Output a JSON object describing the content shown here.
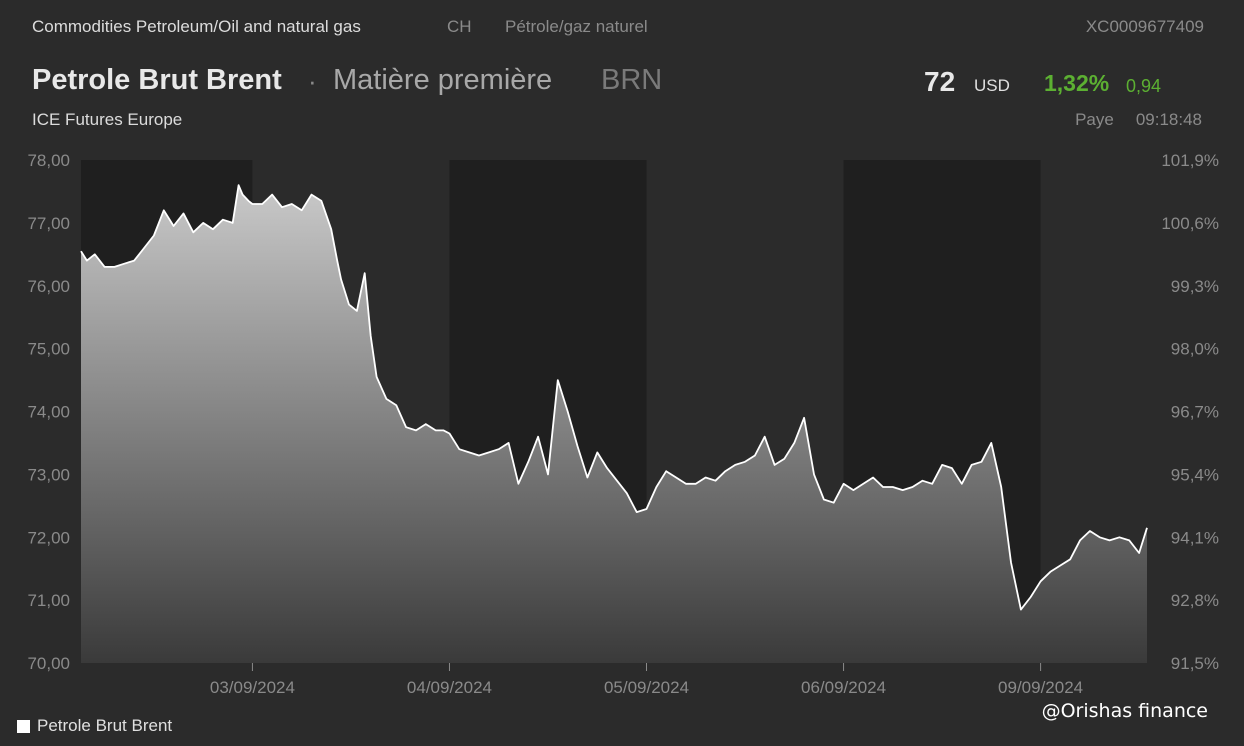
{
  "header": {
    "category": "Commodities Petroleum/Oil and natural gas",
    "country": "CH",
    "category_fr": "Pétrole/gaz naturel",
    "isin": "XC0009677409",
    "name": "Petrole Brut Brent",
    "separator": "·",
    "type": "Matière première",
    "ticker": "BRN",
    "exchange": "ICE Futures Europe"
  },
  "quote": {
    "price": "72",
    "currency": "USD",
    "change_pct": "1,32%",
    "change_abs": "0,94",
    "status": "Paye",
    "time": "09:18:48"
  },
  "legend": {
    "label": "Petrole Brut Brent"
  },
  "watermark": "@Orishas finance",
  "colors": {
    "background": "#2b2b2b",
    "night_band": "#1f1f1f",
    "line": "#ffffff",
    "positive": "#5cb032"
  },
  "chart_data": {
    "type": "area",
    "ylim": [
      70,
      78
    ],
    "y_ticks_left": [
      "78,00",
      "77,00",
      "76,00",
      "75,00",
      "74,00",
      "73,00",
      "72,00",
      "71,00",
      "70,00"
    ],
    "y_ticks_right": [
      "101,9%",
      "100,6%",
      "99,3%",
      "98,0%",
      "96,7%",
      "95,4%",
      "94,1%",
      "92,8%",
      "91,5%"
    ],
    "x_tick_labels": [
      "03/09/2024",
      "04/09/2024",
      "05/09/2024",
      "06/09/2024",
      "09/09/2024"
    ],
    "x_tick_positions": [
      0.87,
      1.87,
      2.87,
      3.87,
      4.87
    ],
    "x_range": [
      0,
      5.41
    ],
    "session_bands": [
      [
        0,
        0.87
      ],
      [
        1.87,
        2.87
      ],
      [
        3.87,
        4.87
      ]
    ],
    "series": [
      {
        "name": "Petrole Brut Brent",
        "x": [
          0.0,
          0.03,
          0.07,
          0.12,
          0.17,
          0.22,
          0.27,
          0.32,
          0.37,
          0.42,
          0.47,
          0.52,
          0.57,
          0.62,
          0.67,
          0.72,
          0.77,
          0.8,
          0.82,
          0.85,
          0.87,
          0.92,
          0.97,
          1.02,
          1.07,
          1.12,
          1.17,
          1.22,
          1.27,
          1.3,
          1.32,
          1.36,
          1.4,
          1.44,
          1.47,
          1.5,
          1.55,
          1.6,
          1.65,
          1.7,
          1.75,
          1.8,
          1.84,
          1.87,
          1.92,
          1.97,
          2.02,
          2.07,
          2.12,
          2.17,
          2.22,
          2.27,
          2.32,
          2.37,
          2.42,
          2.47,
          2.52,
          2.57,
          2.62,
          2.67,
          2.72,
          2.77,
          2.82,
          2.87,
          2.92,
          2.97,
          3.02,
          3.07,
          3.12,
          3.17,
          3.22,
          3.27,
          3.32,
          3.37,
          3.42,
          3.47,
          3.52,
          3.57,
          3.62,
          3.67,
          3.72,
          3.77,
          3.82,
          3.87,
          3.92,
          3.97,
          4.02,
          4.07,
          4.12,
          4.17,
          4.22,
          4.27,
          4.32,
          4.37,
          4.42,
          4.47,
          4.52,
          4.57,
          4.62,
          4.67,
          4.72,
          4.77,
          4.82,
          4.87,
          4.92,
          4.97,
          5.02,
          5.07,
          5.12,
          5.17,
          5.22,
          5.27,
          5.32,
          5.37,
          5.41
        ],
        "values": [
          76.55,
          76.4,
          76.5,
          76.3,
          76.3,
          76.35,
          76.4,
          76.6,
          76.8,
          77.2,
          76.95,
          77.15,
          76.85,
          77.0,
          76.9,
          77.05,
          77.0,
          77.6,
          77.45,
          77.35,
          77.3,
          77.3,
          77.45,
          77.25,
          77.3,
          77.2,
          77.45,
          77.35,
          76.9,
          76.4,
          76.1,
          75.7,
          75.6,
          76.2,
          75.2,
          74.55,
          74.2,
          74.1,
          73.75,
          73.7,
          73.8,
          73.7,
          73.7,
          73.65,
          73.4,
          73.35,
          73.3,
          73.35,
          73.4,
          73.5,
          72.85,
          73.2,
          73.6,
          73.0,
          74.5,
          74.0,
          73.45,
          72.95,
          73.35,
          73.1,
          72.9,
          72.7,
          72.4,
          72.45,
          72.8,
          73.05,
          72.95,
          72.85,
          72.85,
          72.95,
          72.9,
          73.05,
          73.15,
          73.2,
          73.3,
          73.6,
          73.15,
          73.25,
          73.5,
          73.9,
          73.0,
          72.6,
          72.55,
          72.85,
          72.75,
          72.85,
          72.95,
          72.8,
          72.8,
          72.75,
          72.8,
          72.9,
          72.85,
          73.15,
          73.1,
          72.85,
          73.15,
          73.2,
          73.5,
          72.8,
          71.6,
          70.85,
          71.05,
          71.3,
          71.45,
          71.55,
          71.65,
          71.95,
          72.1,
          72.0,
          71.95,
          72.0,
          71.95,
          71.75,
          72.15
        ]
      }
    ]
  }
}
